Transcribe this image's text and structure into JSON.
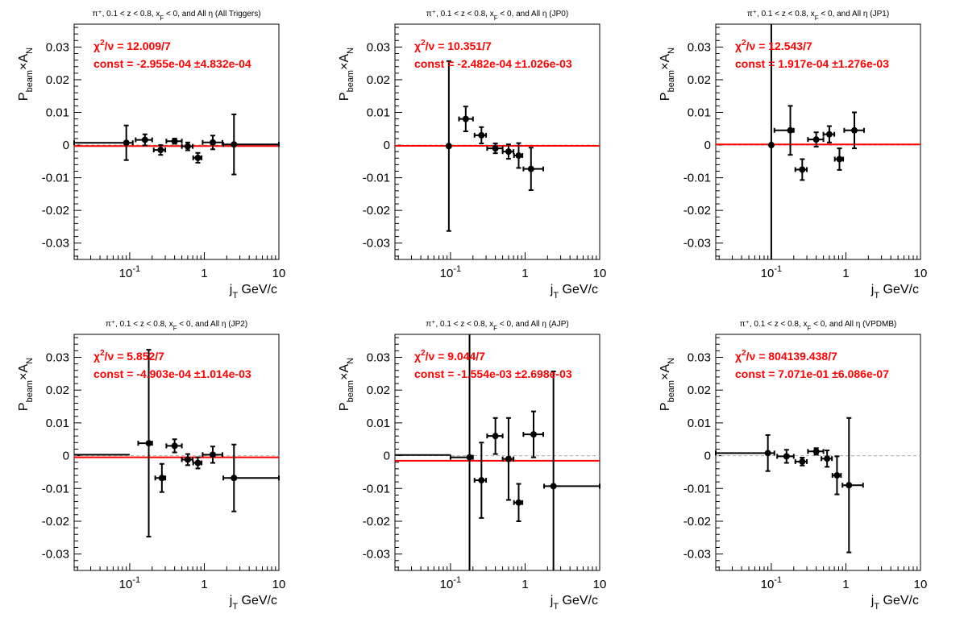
{
  "figure": {
    "fit_line_color": "#ff0000",
    "zero_line_color": "#b4b4b4",
    "marker_color": "#000000"
  },
  "chart_data": [
    {
      "type": "scatter",
      "title": "π⁺, 0.1 < z < 0.8, x_F < 0, and All η (All Triggers)",
      "xlabel": "j_T GeV/c",
      "ylabel": "P_beam×A_N",
      "x_scale": "log",
      "xlim": [
        0.018,
        10
      ],
      "ylim": [
        -0.035,
        0.037
      ],
      "y_ticks": [
        -0.03,
        -0.02,
        -0.01,
        0,
        0.01,
        0.02,
        0.03
      ],
      "x_tick_labels": [
        "10⁻¹",
        "1",
        "10"
      ],
      "fit": {
        "chi2_ndf": "χ²/ν = 12.009/7",
        "const": "const = -2.955e-04  ±4.832e-04",
        "value": -0.0002955
      },
      "points": [
        {
          "x": 0.09,
          "x_lo": 0.018,
          "x_hi": 0.11,
          "y": 0.0007,
          "yerr": 0.0053
        },
        {
          "x": 0.16,
          "x_lo": 0.12,
          "x_hi": 0.2,
          "y": 0.0016,
          "yerr": 0.0017
        },
        {
          "x": 0.26,
          "x_lo": 0.21,
          "x_hi": 0.3,
          "y": -0.0015,
          "yerr": 0.0015
        },
        {
          "x": 0.4,
          "x_lo": 0.31,
          "x_hi": 0.5,
          "y": 0.0012,
          "yerr": 0.0008
        },
        {
          "x": 0.6,
          "x_lo": 0.5,
          "x_hi": 0.7,
          "y": -0.0004,
          "yerr": 0.0012
        },
        {
          "x": 0.82,
          "x_lo": 0.71,
          "x_hi": 0.92,
          "y": -0.0039,
          "yerr": 0.0015
        },
        {
          "x": 1.3,
          "x_lo": 0.95,
          "x_hi": 1.75,
          "y": 0.0008,
          "yerr": 0.0021
        },
        {
          "x": 2.5,
          "x_lo": 1.8,
          "x_hi": 10,
          "y": 0.0002,
          "yerr": 0.0092
        }
      ]
    },
    {
      "type": "scatter",
      "title": "π⁺, 0.1 < z < 0.8, x_F < 0, and All η (JP0)",
      "xlabel": "j_T GeV/c",
      "ylabel": "P_beam×A_N",
      "x_scale": "log",
      "xlim": [
        0.018,
        10
      ],
      "ylim": [
        -0.035,
        0.037
      ],
      "y_ticks": [
        -0.03,
        -0.02,
        -0.01,
        0,
        0.01,
        0.02,
        0.03
      ],
      "x_tick_labels": [
        "10⁻¹",
        "1",
        "10"
      ],
      "fit": {
        "chi2_ndf": "χ²/ν = 10.351/7",
        "const": "const = -2.482e-04  ±1.026e-03",
        "value": -0.0002482
      },
      "points": [
        {
          "x": 0.095,
          "x_lo": 0.095,
          "x_hi": 0.095,
          "y": -0.0003,
          "yerr": 0.026
        },
        {
          "x": 0.16,
          "x_lo": 0.13,
          "x_hi": 0.2,
          "y": 0.008,
          "yerr": 0.0038
        },
        {
          "x": 0.26,
          "x_lo": 0.21,
          "x_hi": 0.3,
          "y": 0.003,
          "yerr": 0.0025
        },
        {
          "x": 0.4,
          "x_lo": 0.31,
          "x_hi": 0.5,
          "y": -0.001,
          "yerr": 0.0015
        },
        {
          "x": 0.6,
          "x_lo": 0.5,
          "x_hi": 0.7,
          "y": -0.002,
          "yerr": 0.0022
        },
        {
          "x": 0.82,
          "x_lo": 0.71,
          "x_hi": 0.92,
          "y": -0.0032,
          "yerr": 0.0038
        },
        {
          "x": 1.2,
          "x_lo": 0.95,
          "x_hi": 1.75,
          "y": -0.0073,
          "yerr": 0.0065
        }
      ]
    },
    {
      "type": "scatter",
      "title": "π⁺, 0.1 < z < 0.8, x_F < 0, and All η (JP1)",
      "xlabel": "j_T GeV/c",
      "ylabel": "P_beam×A_N",
      "x_scale": "log",
      "xlim": [
        0.018,
        10
      ],
      "ylim": [
        -0.035,
        0.037
      ],
      "y_ticks": [
        -0.03,
        -0.02,
        -0.01,
        0,
        0.01,
        0.02,
        0.03
      ],
      "x_tick_labels": [
        "10⁻¹",
        "1",
        "10"
      ],
      "fit": {
        "chi2_ndf": "χ²/ν = 12.543/7",
        "const": "const = 1.917e-04  ±1.276e-03",
        "value": 0.0001917
      },
      "points": [
        {
          "x": 0.1,
          "x_lo": 0.1,
          "x_hi": 0.1,
          "y": 0.0,
          "yerr": 0.045
        },
        {
          "x": 0.18,
          "x_lo": 0.11,
          "x_hi": 0.2,
          "y": 0.0045,
          "yerr": 0.0075
        },
        {
          "x": 0.26,
          "x_lo": 0.21,
          "x_hi": 0.3,
          "y": -0.0075,
          "yerr": 0.0032
        },
        {
          "x": 0.4,
          "x_lo": 0.31,
          "x_hi": 0.5,
          "y": 0.0017,
          "yerr": 0.0022
        },
        {
          "x": 0.6,
          "x_lo": 0.5,
          "x_hi": 0.7,
          "y": 0.0033,
          "yerr": 0.0025
        },
        {
          "x": 0.82,
          "x_lo": 0.71,
          "x_hi": 0.92,
          "y": -0.0043,
          "yerr": 0.0033
        },
        {
          "x": 1.3,
          "x_lo": 0.95,
          "x_hi": 1.75,
          "y": 0.0045,
          "yerr": 0.0055
        }
      ]
    },
    {
      "type": "scatter",
      "title": "π⁺, 0.1 < z < 0.8, x_F < 0, and All η (JP2)",
      "xlabel": "j_T GeV/c",
      "ylabel": "P_beam×A_N",
      "x_scale": "log",
      "xlim": [
        0.018,
        10
      ],
      "ylim": [
        -0.035,
        0.037
      ],
      "y_ticks": [
        -0.03,
        -0.02,
        -0.01,
        0,
        0.01,
        0.02,
        0.03
      ],
      "x_tick_labels": [
        "10⁻¹",
        "1",
        "10"
      ],
      "fit": {
        "chi2_ndf": "χ²/ν = 5.852/7",
        "const": "const = -4.903e-04  ±1.014e-03",
        "value": -0.0004903
      },
      "points": [
        {
          "x": 0.18,
          "x_lo": 0.13,
          "x_hi": 0.2,
          "y": 0.0038,
          "yerr": 0.0285
        },
        {
          "x": 0.27,
          "x_lo": 0.22,
          "x_hi": 0.3,
          "y": -0.0068,
          "yerr": 0.0043
        },
        {
          "x": 0.4,
          "x_lo": 0.31,
          "x_hi": 0.5,
          "y": 0.003,
          "yerr": 0.002
        },
        {
          "x": 0.6,
          "x_lo": 0.5,
          "x_hi": 0.7,
          "y": -0.0012,
          "yerr": 0.0017
        },
        {
          "x": 0.82,
          "x_lo": 0.71,
          "x_hi": 0.92,
          "y": -0.0022,
          "yerr": 0.0017
        },
        {
          "x": 1.3,
          "x_lo": 0.95,
          "x_hi": 1.75,
          "y": 0.0003,
          "yerr": 0.0025
        },
        {
          "x": 2.5,
          "x_lo": 1.8,
          "x_hi": 10,
          "y": -0.0068,
          "yerr": 0.0102
        }
      ],
      "extra_segments": [
        {
          "x_lo": 0.018,
          "x_hi": 0.1,
          "y": 0.0003
        }
      ]
    },
    {
      "type": "scatter",
      "title": "π⁺, 0.1 < z < 0.8, x_F < 0, and All η (AJP)",
      "xlabel": "j_T GeV/c",
      "ylabel": "P_beam×A_N",
      "x_scale": "log",
      "xlim": [
        0.018,
        10
      ],
      "ylim": [
        -0.035,
        0.037
      ],
      "y_ticks": [
        -0.03,
        -0.02,
        -0.01,
        0,
        0.01,
        0.02,
        0.03
      ],
      "x_tick_labels": [
        "10⁻¹",
        "1",
        "10"
      ],
      "fit": {
        "chi2_ndf": "χ²/ν = 9.044/7",
        "const": "const = -1.554e-03  ±2.698e-03",
        "value": -0.001554
      },
      "points": [
        {
          "x": 0.18,
          "x_lo": 0.1,
          "x_hi": 0.2,
          "y": -0.0005,
          "yerr": 0.045
        },
        {
          "x": 0.26,
          "x_lo": 0.21,
          "x_hi": 0.3,
          "y": -0.0075,
          "yerr": 0.0115
        },
        {
          "x": 0.4,
          "x_lo": 0.31,
          "x_hi": 0.5,
          "y": 0.006,
          "yerr": 0.0055
        },
        {
          "x": 0.6,
          "x_lo": 0.5,
          "x_hi": 0.7,
          "y": -0.001,
          "yerr": 0.0125
        },
        {
          "x": 0.82,
          "x_lo": 0.71,
          "x_hi": 0.92,
          "y": -0.0143,
          "yerr": 0.0057
        },
        {
          "x": 1.3,
          "x_lo": 0.95,
          "x_hi": 1.75,
          "y": 0.0065,
          "yerr": 0.007
        },
        {
          "x": 2.4,
          "x_lo": 1.8,
          "x_hi": 10,
          "y": -0.0093,
          "yerr": 0.035
        }
      ],
      "extra_segments": [
        {
          "x_lo": 0.018,
          "x_hi": 0.1,
          "y": 0.0002
        }
      ]
    },
    {
      "type": "scatter",
      "title": "π⁺, 0.1 < z < 0.8, x_F < 0, and All η (VPDMB)",
      "xlabel": "j_T GeV/c",
      "ylabel": "P_beam×A_N",
      "x_scale": "log",
      "xlim": [
        0.018,
        10
      ],
      "ylim": [
        -0.035,
        0.037
      ],
      "y_ticks": [
        -0.03,
        -0.02,
        -0.01,
        0,
        0.01,
        0.02,
        0.03
      ],
      "x_tick_labels": [
        "10⁻¹",
        "1",
        "10"
      ],
      "fit": {
        "chi2_ndf": "χ²/ν = 804139.438/7",
        "const": "const = 7.071e-01  ±6.086e-07",
        "value": 0.7071
      },
      "points": [
        {
          "x": 0.09,
          "x_lo": 0.018,
          "x_hi": 0.11,
          "y": 0.0008,
          "yerr": 0.0055
        },
        {
          "x": 0.16,
          "x_lo": 0.12,
          "x_hi": 0.2,
          "y": -0.0002,
          "yerr": 0.002
        },
        {
          "x": 0.26,
          "x_lo": 0.21,
          "x_hi": 0.3,
          "y": -0.0018,
          "yerr": 0.0012
        },
        {
          "x": 0.4,
          "x_lo": 0.31,
          "x_hi": 0.5,
          "y": 0.0013,
          "yerr": 0.001
        },
        {
          "x": 0.56,
          "x_lo": 0.47,
          "x_hi": 0.65,
          "y": -0.0009,
          "yerr": 0.0025
        },
        {
          "x": 0.76,
          "x_lo": 0.66,
          "x_hi": 0.86,
          "y": -0.006,
          "yerr": 0.0058
        },
        {
          "x": 1.1,
          "x_lo": 0.9,
          "x_hi": 1.7,
          "y": -0.009,
          "yerr": 0.0205
        }
      ]
    }
  ]
}
